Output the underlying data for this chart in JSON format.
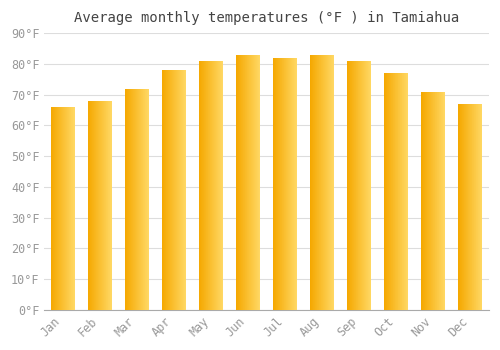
{
  "title": "Average monthly temperatures (°F ) in Tamiahua",
  "months": [
    "Jan",
    "Feb",
    "Mar",
    "Apr",
    "May",
    "Jun",
    "Jul",
    "Aug",
    "Sep",
    "Oct",
    "Nov",
    "Dec"
  ],
  "values": [
    66,
    68,
    72,
    78,
    81,
    83,
    82,
    83,
    81,
    77,
    71,
    67
  ],
  "bar_color_left": "#F5A800",
  "bar_color_right": "#FFD966",
  "ylim": [
    0,
    90
  ],
  "ytick_step": 10,
  "background_color": "#FFFFFF",
  "grid_color": "#DDDDDD",
  "title_fontsize": 10,
  "tick_fontsize": 8.5,
  "font_family": "monospace",
  "tick_color": "#999999",
  "bar_width": 0.65
}
